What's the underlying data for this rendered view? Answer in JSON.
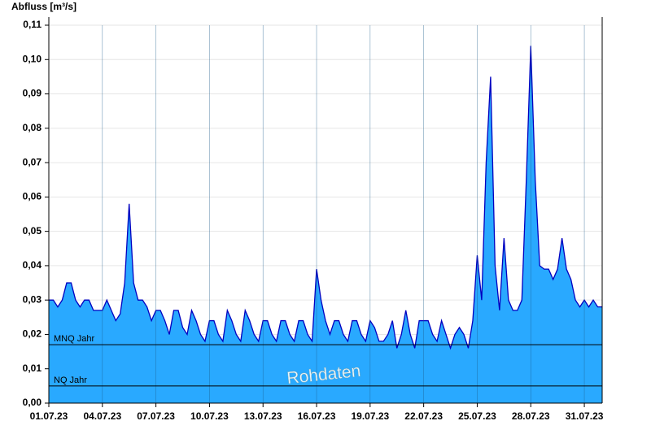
{
  "chart_data": {
    "type": "area",
    "ylabel": "Abfluss [m³/s]",
    "watermark": "Rohdaten",
    "color": "#29a9ff",
    "line_color": "#0000c0",
    "grid": true,
    "xlim": [
      "2023-07-01T00:00",
      "2023-08-01T00:00"
    ],
    "ylim": [
      0,
      0.11
    ],
    "yticks": [
      {
        "value": 0,
        "label": "0,00"
      },
      {
        "value": 0.01,
        "label": "0,01"
      },
      {
        "value": 0.02,
        "label": "0,02"
      },
      {
        "value": 0.03,
        "label": "0,03"
      },
      {
        "value": 0.04,
        "label": "0,04"
      },
      {
        "value": 0.05,
        "label": "0,05"
      },
      {
        "value": 0.06,
        "label": "0,06"
      },
      {
        "value": 0.07,
        "label": "0,07"
      },
      {
        "value": 0.08,
        "label": "0,08"
      },
      {
        "value": 0.09,
        "label": "0,09"
      },
      {
        "value": 0.1,
        "label": "0,10"
      },
      {
        "value": 0.11,
        "label": "0,11"
      }
    ],
    "xticks": [
      {
        "value": "2023-07-01T00:00",
        "label": "01.07.23"
      },
      {
        "value": "2023-07-04T00:00",
        "label": "04.07.23"
      },
      {
        "value": "2023-07-07T00:00",
        "label": "07.07.23"
      },
      {
        "value": "2023-07-10T00:00",
        "label": "10.07.23"
      },
      {
        "value": "2023-07-13T00:00",
        "label": "13.07.23"
      },
      {
        "value": "2023-07-16T00:00",
        "label": "16.07.23"
      },
      {
        "value": "2023-07-19T00:00",
        "label": "19.07.23"
      },
      {
        "value": "2023-07-22T00:00",
        "label": "22.07.23"
      },
      {
        "value": "2023-07-25T00:00",
        "label": "25.07.23"
      },
      {
        "value": "2023-07-28T00:00",
        "label": "28.07.23"
      },
      {
        "value": "2023-07-31T00:00",
        "label": "31.07.23"
      }
    ],
    "reference_lines": [
      {
        "label": "MNQ Jahr",
        "value": 0.017
      },
      {
        "label": "NQ Jahr",
        "value": 0.005
      }
    ],
    "x": [
      "2023-07-01T00:00",
      "2023-07-01T06:00",
      "2023-07-01T12:00",
      "2023-07-01T18:00",
      "2023-07-02T00:00",
      "2023-07-02T06:00",
      "2023-07-02T12:00",
      "2023-07-02T18:00",
      "2023-07-03T00:00",
      "2023-07-03T06:00",
      "2023-07-03T12:00",
      "2023-07-03T18:00",
      "2023-07-04T00:00",
      "2023-07-04T06:00",
      "2023-07-04T12:00",
      "2023-07-04T18:00",
      "2023-07-05T00:00",
      "2023-07-05T06:00",
      "2023-07-05T12:00",
      "2023-07-05T18:00",
      "2023-07-06T00:00",
      "2023-07-06T06:00",
      "2023-07-06T12:00",
      "2023-07-06T18:00",
      "2023-07-07T00:00",
      "2023-07-07T06:00",
      "2023-07-07T12:00",
      "2023-07-07T18:00",
      "2023-07-08T00:00",
      "2023-07-08T06:00",
      "2023-07-08T12:00",
      "2023-07-08T18:00",
      "2023-07-09T00:00",
      "2023-07-09T06:00",
      "2023-07-09T12:00",
      "2023-07-09T18:00",
      "2023-07-10T00:00",
      "2023-07-10T06:00",
      "2023-07-10T12:00",
      "2023-07-10T18:00",
      "2023-07-11T00:00",
      "2023-07-11T06:00",
      "2023-07-11T12:00",
      "2023-07-11T18:00",
      "2023-07-12T00:00",
      "2023-07-12T06:00",
      "2023-07-12T12:00",
      "2023-07-12T18:00",
      "2023-07-13T00:00",
      "2023-07-13T06:00",
      "2023-07-13T12:00",
      "2023-07-13T18:00",
      "2023-07-14T00:00",
      "2023-07-14T06:00",
      "2023-07-14T12:00",
      "2023-07-14T18:00",
      "2023-07-15T00:00",
      "2023-07-15T06:00",
      "2023-07-15T12:00",
      "2023-07-15T18:00",
      "2023-07-16T00:00",
      "2023-07-16T06:00",
      "2023-07-16T12:00",
      "2023-07-16T18:00",
      "2023-07-17T00:00",
      "2023-07-17T06:00",
      "2023-07-17T12:00",
      "2023-07-17T18:00",
      "2023-07-18T00:00",
      "2023-07-18T06:00",
      "2023-07-18T12:00",
      "2023-07-18T18:00",
      "2023-07-19T00:00",
      "2023-07-19T06:00",
      "2023-07-19T12:00",
      "2023-07-19T18:00",
      "2023-07-20T00:00",
      "2023-07-20T06:00",
      "2023-07-20T12:00",
      "2023-07-20T18:00",
      "2023-07-21T00:00",
      "2023-07-21T06:00",
      "2023-07-21T12:00",
      "2023-07-21T18:00",
      "2023-07-22T00:00",
      "2023-07-22T06:00",
      "2023-07-22T12:00",
      "2023-07-22T18:00",
      "2023-07-23T00:00",
      "2023-07-23T06:00",
      "2023-07-23T12:00",
      "2023-07-23T18:00",
      "2023-07-24T00:00",
      "2023-07-24T06:00",
      "2023-07-24T12:00",
      "2023-07-24T18:00",
      "2023-07-25T00:00",
      "2023-07-25T06:00",
      "2023-07-25T12:00",
      "2023-07-25T18:00",
      "2023-07-26T00:00",
      "2023-07-26T06:00",
      "2023-07-26T12:00",
      "2023-07-26T18:00",
      "2023-07-27T00:00",
      "2023-07-27T06:00",
      "2023-07-27T12:00",
      "2023-07-27T18:00",
      "2023-07-28T00:00",
      "2023-07-28T06:00",
      "2023-07-28T12:00",
      "2023-07-28T18:00",
      "2023-07-29T00:00",
      "2023-07-29T06:00",
      "2023-07-29T12:00",
      "2023-07-29T18:00",
      "2023-07-30T00:00",
      "2023-07-30T06:00",
      "2023-07-30T12:00",
      "2023-07-30T18:00",
      "2023-07-31T00:00",
      "2023-07-31T06:00",
      "2023-07-31T12:00",
      "2023-07-31T18:00",
      "2023-08-01T00:00"
    ],
    "values": [
      0.03,
      0.03,
      0.028,
      0.03,
      0.035,
      0.035,
      0.03,
      0.028,
      0.03,
      0.03,
      0.027,
      0.027,
      0.027,
      0.03,
      0.027,
      0.024,
      0.026,
      0.035,
      0.058,
      0.035,
      0.03,
      0.03,
      0.028,
      0.024,
      0.027,
      0.027,
      0.024,
      0.02,
      0.027,
      0.027,
      0.022,
      0.02,
      0.027,
      0.024,
      0.02,
      0.018,
      0.024,
      0.024,
      0.02,
      0.018,
      0.027,
      0.024,
      0.02,
      0.018,
      0.027,
      0.024,
      0.02,
      0.018,
      0.024,
      0.024,
      0.02,
      0.018,
      0.024,
      0.024,
      0.02,
      0.018,
      0.024,
      0.024,
      0.02,
      0.018,
      0.039,
      0.03,
      0.024,
      0.02,
      0.024,
      0.024,
      0.02,
      0.018,
      0.024,
      0.024,
      0.02,
      0.018,
      0.024,
      0.022,
      0.018,
      0.018,
      0.02,
      0.024,
      0.016,
      0.02,
      0.027,
      0.02,
      0.016,
      0.024,
      0.024,
      0.024,
      0.02,
      0.018,
      0.024,
      0.02,
      0.016,
      0.02,
      0.022,
      0.02,
      0.016,
      0.024,
      0.043,
      0.03,
      0.07,
      0.095,
      0.04,
      0.027,
      0.048,
      0.03,
      0.027,
      0.027,
      0.03,
      0.065,
      0.104,
      0.065,
      0.04,
      0.039,
      0.039,
      0.036,
      0.039,
      0.048,
      0.039,
      0.036,
      0.03,
      0.028,
      0.03,
      0.028,
      0.03,
      0.028,
      0.028
    ]
  }
}
